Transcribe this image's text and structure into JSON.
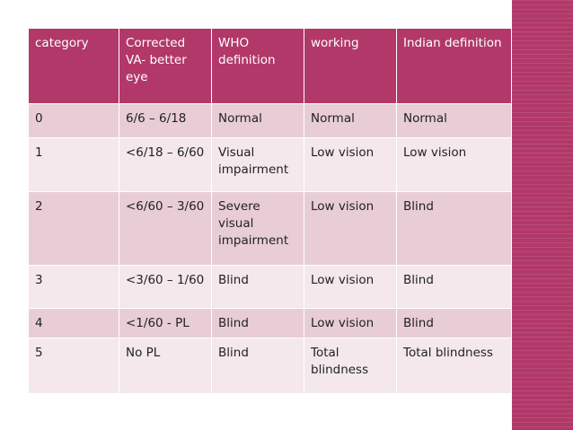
{
  "table": {
    "headers": [
      "category",
      "Corrected VA- better eye",
      "WHO definition",
      "working",
      "Indian definition"
    ],
    "rows": [
      [
        "0",
        "6/6 – 6/18",
        "Normal",
        "Normal",
        "Normal"
      ],
      [
        "1",
        "<6/18 – 6/60",
        "Visual impairment",
        "Low vision",
        "Low vision"
      ],
      [
        "2",
        "<6/60 – 3/60",
        "Severe visual impairment",
        "Low vision",
        "Blind"
      ],
      [
        "3",
        "<3/60 – 1/60",
        "Blind",
        "Low vision",
        "Blind"
      ],
      [
        "4",
        "<1/60 - PL",
        "Blind",
        "Low vision",
        "Blind"
      ],
      [
        "5",
        "No PL",
        "Blind",
        "Total blindness",
        "Total blindness"
      ]
    ]
  },
  "colors": {
    "header_bg": "#b2386a",
    "row_dark": "#e8cdd6",
    "row_light": "#f4e8ec",
    "side_panel": "#b2386a"
  }
}
